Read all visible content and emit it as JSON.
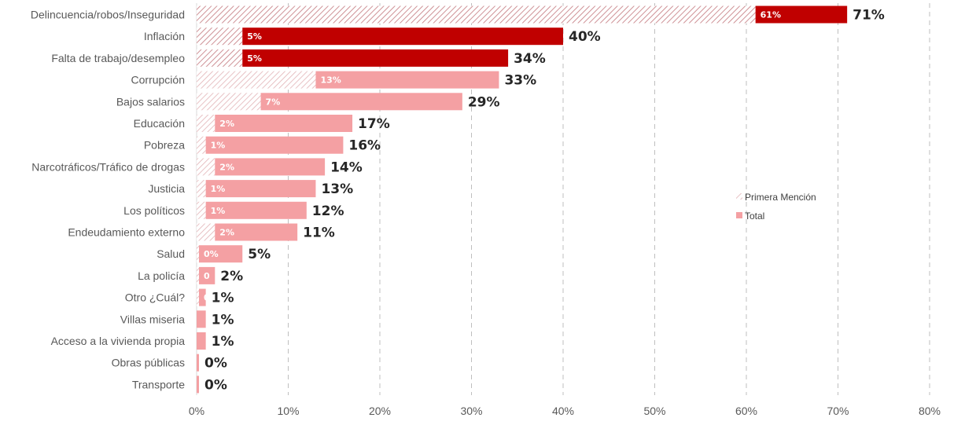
{
  "chart_data": {
    "type": "bar",
    "orientation": "horizontal",
    "categories": [
      "Delincuencia/robos/Inseguridad",
      "Inflación",
      "Falta de trabajo/desempleo",
      "Corrupción",
      "Bajos salarios",
      "Educación",
      "Pobreza",
      "Narcotráficos/Tráfico de drogas",
      "Justicia",
      "Los políticos",
      "Endeudamiento externo",
      "Salud",
      "La policía",
      "Otro ¿Cuál?",
      "Villas miseria",
      "Acceso a la vivienda propia",
      "Obras públicas",
      "Transporte"
    ],
    "series": [
      {
        "name": "Primera Mención",
        "values": [
          61,
          5,
          5,
          13,
          7,
          2,
          1,
          2,
          1,
          1,
          2,
          0,
          0,
          0,
          null,
          null,
          null,
          null
        ],
        "labels": [
          "61%",
          "5%",
          "5%",
          "13%",
          "7%",
          "2%",
          "1%",
          "2%",
          "1%",
          "1%",
          "2%",
          "0%",
          "0",
          "0",
          "",
          "",
          "",
          ""
        ]
      },
      {
        "name": "Total",
        "values": [
          71,
          40,
          34,
          33,
          29,
          17,
          16,
          14,
          13,
          12,
          11,
          5,
          2,
          1,
          1,
          1,
          0,
          0
        ],
        "labels": [
          "71%",
          "40%",
          "34%",
          "33%",
          "29%",
          "17%",
          "16%",
          "14%",
          "13%",
          "12%",
          "11%",
          "5%",
          "2%",
          "1%",
          "1%",
          "1%",
          "0%",
          "0%"
        ]
      }
    ],
    "highlight_rows": [
      0,
      1,
      2
    ],
    "xlim": [
      0,
      80
    ],
    "xticks": [
      0,
      10,
      20,
      30,
      40,
      50,
      60,
      70,
      80
    ],
    "xtick_labels": [
      "0%",
      "10%",
      "20%",
      "30%",
      "40%",
      "50%",
      "60%",
      "70%",
      "80%"
    ],
    "grid": "vertical-dashed",
    "legend": {
      "position": "right",
      "entries": [
        "Primera Mención",
        "Total"
      ]
    },
    "colors": {
      "total_default": "#f4a0a3",
      "total_highlight": "#c00000",
      "hatch_line": "#e0b0b3",
      "hatch_line_highlight": "#c97f84",
      "grid": "#bfbfbf"
    }
  }
}
